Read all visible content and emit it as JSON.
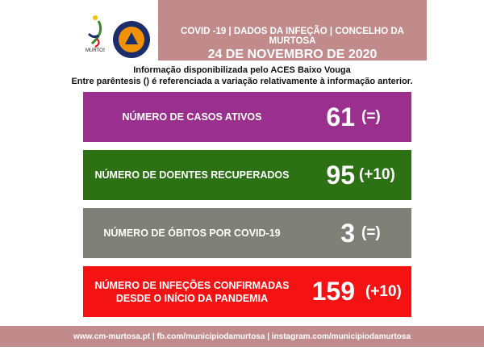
{
  "header": {
    "title": "COVID -19 | DADOS DA INFEÇÃO | CONCELHO DA MURTOSA",
    "date": "24 DE NOVEMBRO DE 2020"
  },
  "logos": {
    "municipality": "MURTOSA",
    "civil_protection": "PROTECÇÃO CIVIL MURTOSA"
  },
  "info": {
    "line1": "Informação disponibilizada pelo ACES Baixo Vouga",
    "line2": "Entre parêntesis () é referenciada a variação relativamente à informação anterior."
  },
  "stats": [
    {
      "label": "NÚMERO DE CASOS ATIVOS",
      "value": "61",
      "change": "(=)",
      "color": "#9b2f8e"
    },
    {
      "label": "NÚMERO DE DOENTES RECUPERADOS",
      "value": "95",
      "change": "(+10)",
      "color": "#2d7115"
    },
    {
      "label": "NÚMERO DE ÓBITOS POR COVID-19",
      "value": "3",
      "change": "(=)",
      "color": "#7f8078"
    },
    {
      "label": "NÚMERO DE INFEÇÕES CONFIRMADAS DESDE O INÍCIO DA PANDEMIA",
      "value": "159",
      "change": "(+10)",
      "color": "#f41212"
    }
  ],
  "footer": {
    "text": "www.cm-murtosa.pt  | fb.com/municipiodamurtosa | instagram.com/municipiodamurtosa"
  }
}
